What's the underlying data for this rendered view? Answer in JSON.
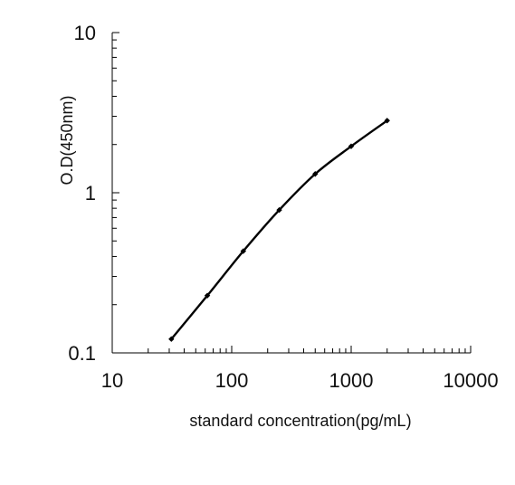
{
  "chart_data": {
    "type": "line",
    "title": "",
    "xlabel": "standard concentration(pg/mL)",
    "ylabel": "O.D(450nm)",
    "x_scale": "log",
    "y_scale": "log",
    "xlim": [
      10,
      10000
    ],
    "ylim": [
      0.1,
      10
    ],
    "x_ticks": [
      10,
      100,
      1000,
      10000
    ],
    "x_tick_labels": [
      "10",
      "100",
      "1000",
      "10000"
    ],
    "y_ticks": [
      0.1,
      1,
      10
    ],
    "y_tick_labels": [
      "0.1",
      "1",
      "10"
    ],
    "grid": false,
    "legend": "none",
    "series": [
      {
        "x": [
          31.25,
          62.5,
          125,
          250,
          500,
          1000,
          2000
        ],
        "y": [
          0.122,
          0.228,
          0.432,
          0.78,
          1.31,
          1.95,
          2.82
        ]
      }
    ],
    "colors": {
      "line": "#000000",
      "axis": "#000000",
      "background": "#ffffff"
    }
  }
}
